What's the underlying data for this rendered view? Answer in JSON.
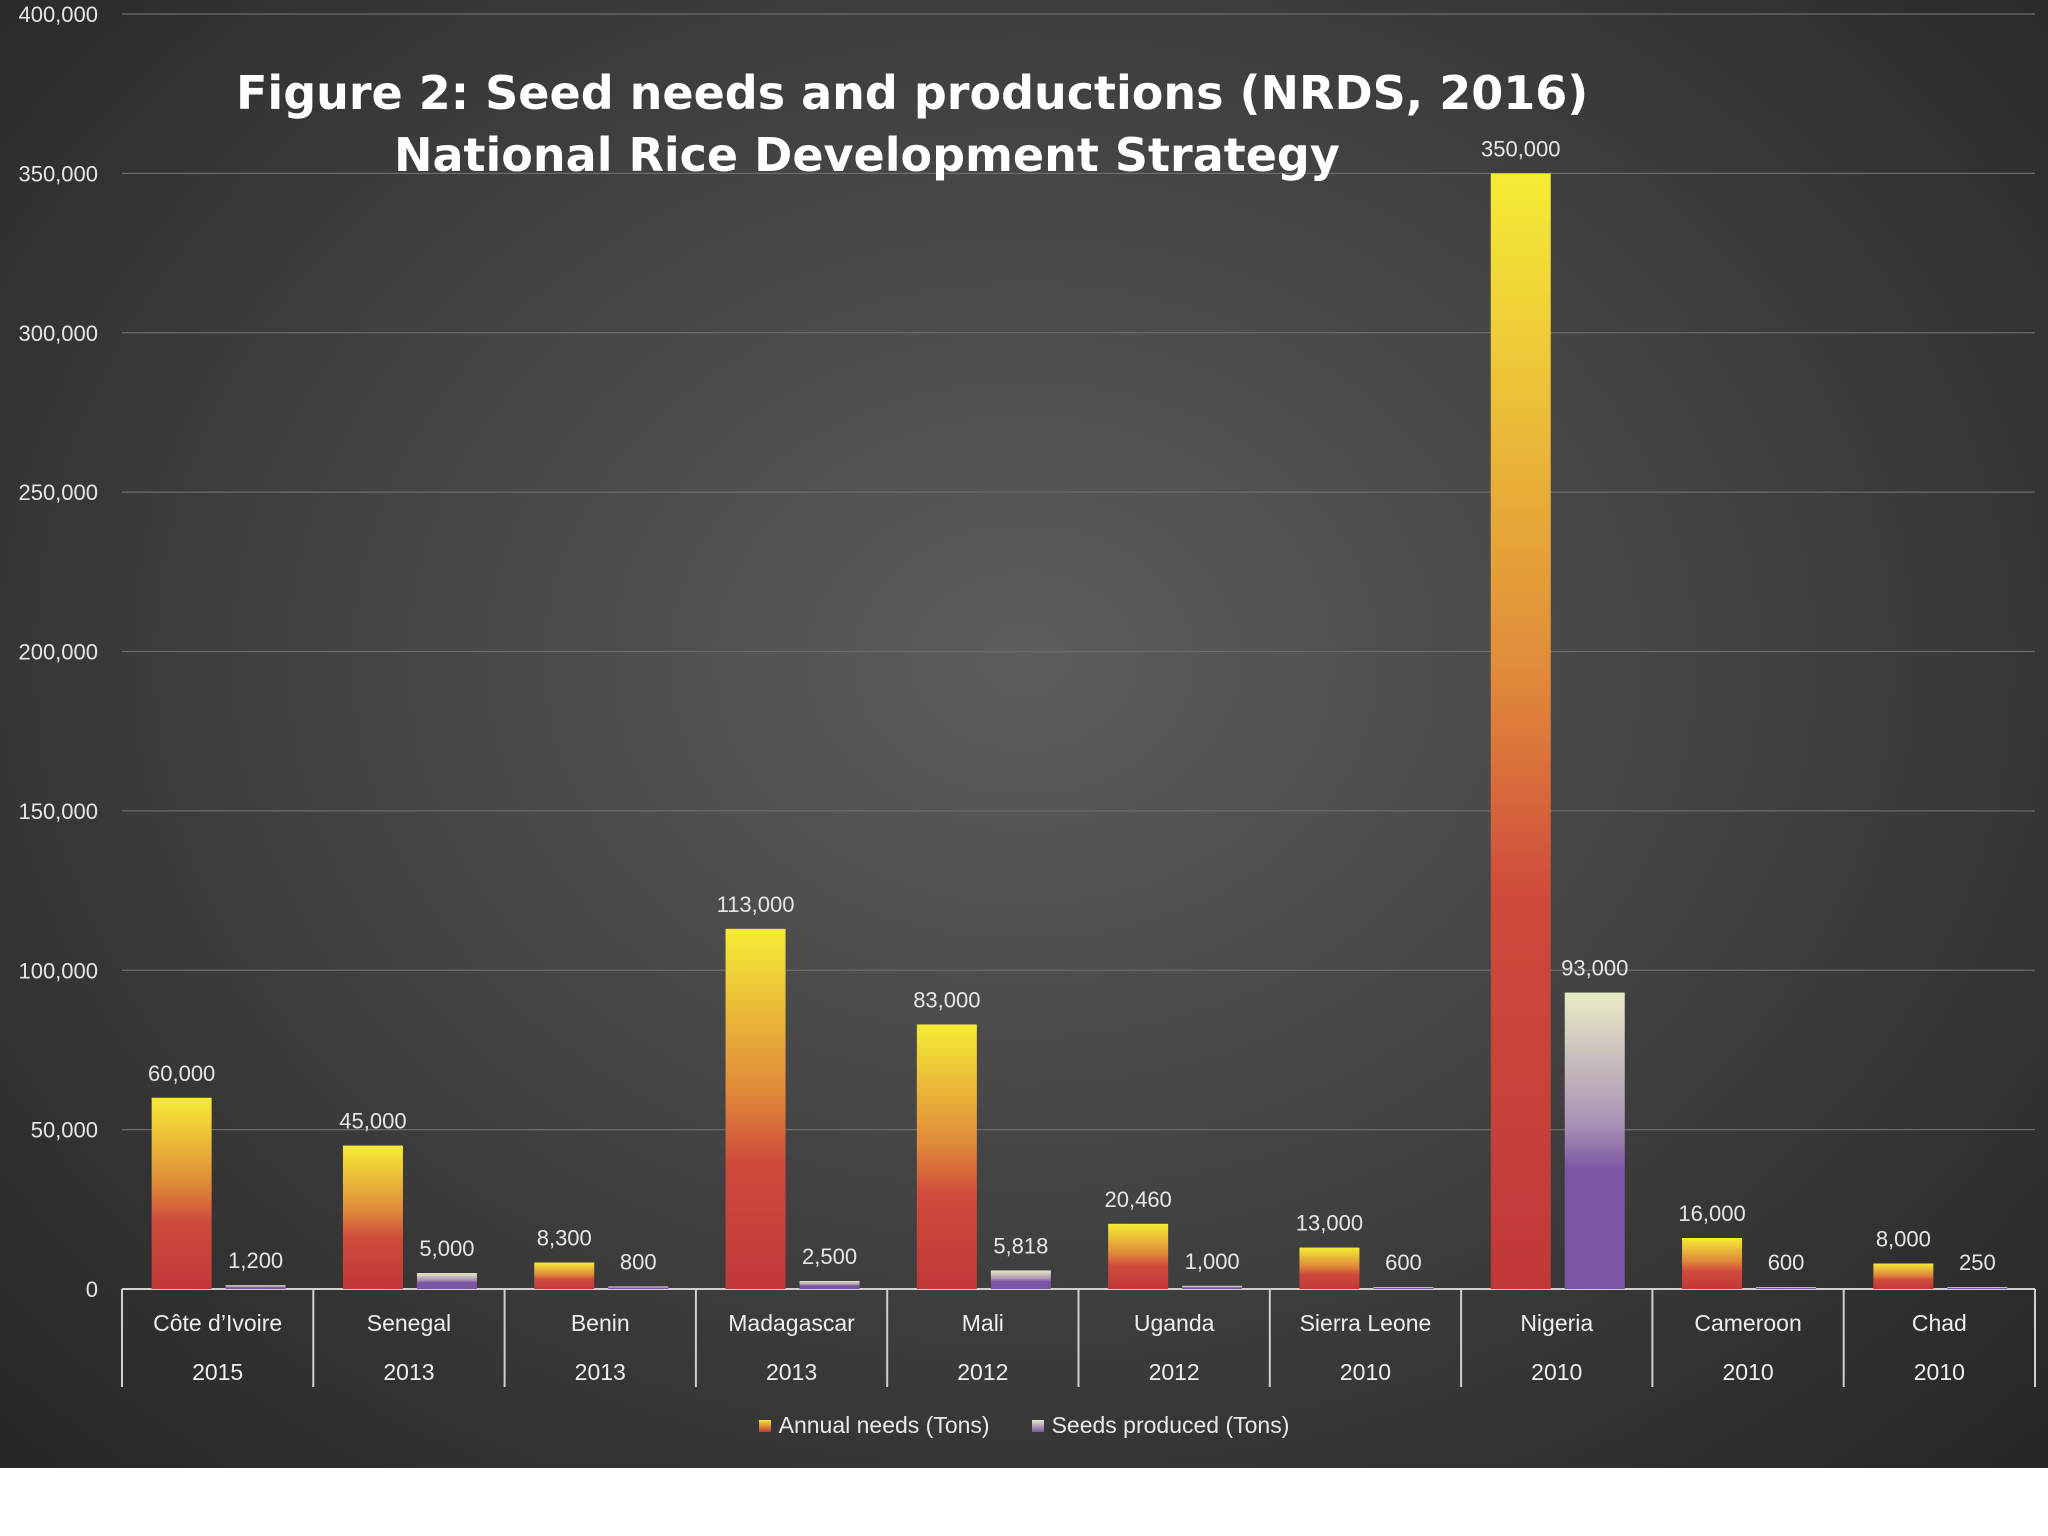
{
  "title_line1": "Figure 2: Seed needs and productions (NRDS, 2016)",
  "title_line2": "National Rice Development Strategy",
  "chart_data": {
    "type": "bar",
    "categories": [
      {
        "country": "Côte d’Ivoire",
        "year": "2015"
      },
      {
        "country": "Senegal",
        "year": "2013"
      },
      {
        "country": "Benin",
        "year": "2013"
      },
      {
        "country": "Madagascar",
        "year": "2013"
      },
      {
        "country": "Mali",
        "year": "2012"
      },
      {
        "country": "Uganda",
        "year": "2012"
      },
      {
        "country": "Sierra Leone",
        "year": "2010"
      },
      {
        "country": "Nigeria",
        "year": "2010"
      },
      {
        "country": "Cameroon",
        "year": "2010"
      },
      {
        "country": "Chad",
        "year": "2010"
      }
    ],
    "series": [
      {
        "name": "Annual needs (Tons)",
        "values": [
          60000,
          45000,
          8300,
          113000,
          83000,
          20460,
          13000,
          350000,
          16000,
          8000
        ],
        "labels": [
          "60,000",
          "45,000",
          "8,300",
          "113,000",
          "83,000",
          "20,460",
          "13,000",
          "350,000",
          "16,000",
          "8,000"
        ],
        "color_top": "#f5ec35",
        "color_mid": "#e08a3a",
        "color_bottom": "#c43a3a"
      },
      {
        "name": "Seeds produced (Tons)",
        "values": [
          1200,
          5000,
          800,
          2500,
          5818,
          1000,
          600,
          93000,
          600,
          250
        ],
        "labels": [
          "1,200",
          "5,000",
          "800",
          "2,500",
          "5,818",
          "1,000",
          "600",
          "93,000",
          "600",
          "250"
        ],
        "color_top": "#e9ecc6",
        "color_bottom": "#7b56a4"
      }
    ],
    "ylim": [
      0,
      400000
    ],
    "yticks": [
      {
        "value": 0,
        "label": "0"
      },
      {
        "value": 50000,
        "label": "50,000"
      },
      {
        "value": 100000,
        "label": "100,000"
      },
      {
        "value": 150000,
        "label": "150,000"
      },
      {
        "value": 200000,
        "label": "200,000"
      },
      {
        "value": 250000,
        "label": "250,000"
      },
      {
        "value": 300000,
        "label": "300,000"
      },
      {
        "value": 350000,
        "label": "350,000"
      },
      {
        "value": 400000,
        "label": "400,000"
      }
    ],
    "grid": true,
    "legend_position": "bottom"
  }
}
